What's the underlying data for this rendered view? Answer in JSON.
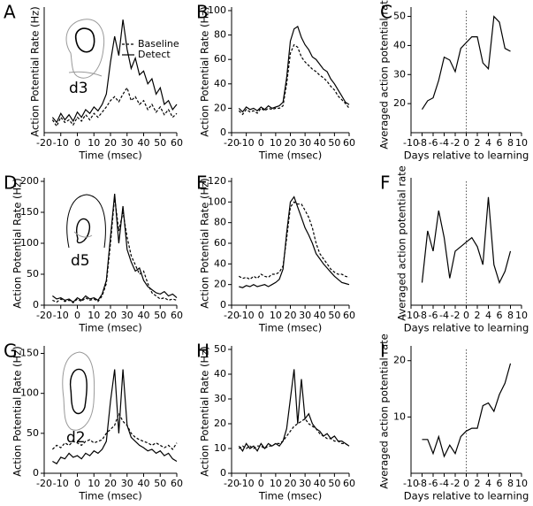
{
  "chart_data": [
    {
      "type": "line",
      "panel_label": "A",
      "xlabel": "Time (msec)",
      "ylabel": "Action Potential Rate (Hz)",
      "annotation": "d3",
      "legend": "upper right",
      "x": [
        -15,
        -12.5,
        -10,
        -7.5,
        -5,
        -2.5,
        0,
        2.5,
        5,
        7.5,
        10,
        12.5,
        15,
        17.5,
        20,
        22.5,
        25,
        27.5,
        30,
        32.5,
        35,
        37.5,
        40,
        42.5,
        45,
        47.5,
        50,
        52.5,
        55,
        57.5,
        60
      ],
      "series": [
        {
          "name": "Baseline",
          "color": "#000000",
          "style": "dashed",
          "values": [
            10,
            5,
            12,
            8,
            10,
            6,
            12,
            9,
            14,
            10,
            15,
            12,
            16,
            20,
            25,
            28,
            24,
            30,
            35,
            25,
            28,
            22,
            25,
            18,
            22,
            16,
            20,
            14,
            18,
            12,
            15
          ]
        },
        {
          "name": "Detect",
          "color": "#000000",
          "style": "solid",
          "values": [
            12,
            8,
            15,
            10,
            14,
            9,
            16,
            12,
            18,
            15,
            20,
            17,
            22,
            30,
            55,
            75,
            60,
            88,
            65,
            50,
            58,
            45,
            48,
            38,
            42,
            30,
            35,
            22,
            25,
            18,
            22
          ]
        }
      ],
      "xlim": [
        -20,
        60
      ],
      "ylim": [
        0,
        95
      ],
      "xticks": [
        -20,
        -10,
        0,
        10,
        20,
        30,
        40,
        50,
        60
      ]
    },
    {
      "type": "line",
      "panel_label": "B",
      "xlabel": "Time (msec)",
      "ylabel": "Action Potential Rate (Hz)",
      "x": [
        -15,
        -12.5,
        -10,
        -7.5,
        -5,
        -2.5,
        0,
        2.5,
        5,
        7.5,
        10,
        12.5,
        15,
        17.5,
        20,
        22.5,
        25,
        27.5,
        30,
        32.5,
        35,
        37.5,
        40,
        42.5,
        45,
        47.5,
        50,
        52.5,
        55,
        57.5,
        60
      ],
      "series": [
        {
          "color": "#000000",
          "style": "dashed",
          "values": [
            18,
            15,
            19,
            17,
            18,
            16,
            20,
            18,
            20,
            19,
            20,
            20,
            22,
            40,
            65,
            72,
            70,
            62,
            58,
            55,
            52,
            50,
            47,
            45,
            42,
            38,
            35,
            30,
            27,
            24,
            20
          ]
        },
        {
          "color": "#000000",
          "style": "solid",
          "values": [
            20,
            17,
            21,
            19,
            20,
            18,
            21,
            19,
            22,
            20,
            21,
            22,
            25,
            45,
            75,
            85,
            87,
            78,
            72,
            68,
            62,
            60,
            56,
            52,
            50,
            44,
            40,
            35,
            30,
            25,
            23
          ]
        }
      ],
      "xlim": [
        -20,
        60
      ],
      "ylim": [
        0,
        100
      ],
      "xticks": [
        -20,
        -10,
        0,
        10,
        20,
        30,
        40,
        50,
        60
      ],
      "yticks": [
        0,
        20,
        40,
        60,
        80,
        100
      ]
    },
    {
      "type": "line",
      "panel_label": "C",
      "xlabel": "Days relative to learning",
      "ylabel": "Averaged action potential rate",
      "vline": 0,
      "x": [
        -8,
        -7,
        -6,
        -5,
        -4,
        -3,
        -2,
        -1,
        0,
        1,
        2,
        3,
        4,
        5,
        6,
        7,
        8
      ],
      "series": [
        {
          "color": "#000000",
          "style": "solid",
          "values": [
            18,
            21,
            22,
            28,
            36,
            35,
            31,
            39,
            41,
            43,
            43,
            34,
            32,
            50,
            48,
            39,
            38
          ]
        }
      ],
      "xlim": [
        -10,
        10
      ],
      "ylim": [
        10,
        52
      ],
      "xticks": [
        -10,
        -8,
        -6,
        -4,
        -2,
        0,
        2,
        4,
        6,
        8,
        10
      ],
      "yticks": [
        20,
        30,
        40,
        50
      ]
    },
    {
      "type": "line",
      "panel_label": "D",
      "xlabel": "Time (msec)",
      "ylabel": "Action Potential Rate (Hz)",
      "annotation": "d5",
      "x": [
        -15,
        -12.5,
        -10,
        -7.5,
        -5,
        -2.5,
        0,
        2.5,
        5,
        7.5,
        10,
        12.5,
        15,
        17.5,
        20,
        22.5,
        25,
        27.5,
        30,
        32.5,
        35,
        37.5,
        40,
        42.5,
        45,
        47.5,
        50,
        52.5,
        55,
        57.5,
        60
      ],
      "series": [
        {
          "color": "#000000",
          "style": "dashed",
          "values": [
            8,
            5,
            10,
            6,
            8,
            4,
            10,
            6,
            12,
            8,
            10,
            6,
            15,
            35,
            100,
            175,
            120,
            150,
            110,
            80,
            65,
            50,
            55,
            35,
            20,
            15,
            10,
            12,
            8,
            10,
            8
          ]
        },
        {
          "color": "#000000",
          "style": "solid",
          "values": [
            15,
            10,
            12,
            8,
            10,
            5,
            12,
            8,
            15,
            10,
            12,
            8,
            18,
            40,
            110,
            180,
            100,
            160,
            90,
            70,
            55,
            60,
            40,
            30,
            25,
            20,
            18,
            22,
            15,
            18,
            12
          ]
        }
      ],
      "xlim": [
        -20,
        60
      ],
      "ylim": [
        0,
        200
      ],
      "xticks": [
        -20,
        -10,
        0,
        10,
        20,
        30,
        40,
        50,
        60
      ],
      "yticks": [
        0,
        50,
        100,
        150,
        200
      ]
    },
    {
      "type": "line",
      "panel_label": "E",
      "xlabel": "Time (msec)",
      "ylabel": "Action Potential Rate (Hz)",
      "x": [
        -15,
        -12.5,
        -10,
        -7.5,
        -5,
        -2.5,
        0,
        2.5,
        5,
        7.5,
        10,
        12.5,
        15,
        17.5,
        20,
        22.5,
        25,
        27.5,
        30,
        32.5,
        35,
        37.5,
        40,
        42.5,
        45,
        47.5,
        50,
        52.5,
        55,
        57.5,
        60
      ],
      "series": [
        {
          "color": "#000000",
          "style": "dashed",
          "values": [
            28,
            26,
            27,
            25,
            28,
            26,
            30,
            28,
            27,
            30,
            30,
            32,
            38,
            65,
            95,
            100,
            98,
            98,
            92,
            85,
            75,
            60,
            50,
            45,
            40,
            35,
            32,
            30,
            30,
            28,
            27
          ]
        },
        {
          "color": "#000000",
          "style": "solid",
          "values": [
            18,
            17,
            19,
            18,
            20,
            18,
            19,
            20,
            18,
            20,
            22,
            25,
            35,
            70,
            100,
            105,
            95,
            85,
            75,
            68,
            60,
            50,
            45,
            40,
            36,
            32,
            28,
            25,
            22,
            21,
            20
          ]
        }
      ],
      "xlim": [
        -20,
        60
      ],
      "ylim": [
        0,
        120
      ],
      "xticks": [
        -20,
        -10,
        0,
        10,
        20,
        30,
        40,
        50,
        60
      ],
      "yticks": [
        0,
        20,
        40,
        60,
        80,
        100,
        120
      ]
    },
    {
      "type": "line",
      "panel_label": "F",
      "xlabel": "Days relative to learning",
      "ylabel": "Averaged action potential rate",
      "vline": 0,
      "x": [
        -8,
        -7,
        -6,
        -5,
        -4,
        -3,
        -2,
        -1,
        0,
        1,
        2,
        3,
        4,
        5,
        6,
        7,
        8
      ],
      "series": [
        {
          "color": "#000000",
          "style": "solid",
          "values": [
            30,
            53,
            44,
            62,
            50,
            32,
            44,
            46,
            48,
            50,
            46,
            38,
            68,
            38,
            30,
            35,
            44
          ]
        }
      ],
      "xlim": [
        -10,
        10
      ],
      "ylim": [
        20,
        75
      ],
      "xticks": [
        -10,
        -8,
        -6,
        -4,
        -2,
        0,
        2,
        4,
        6,
        8,
        10
      ]
    },
    {
      "type": "line",
      "panel_label": "G",
      "xlabel": "Time (msec)",
      "ylabel": "Action Potential Rate (Hz)",
      "annotation": "d2",
      "x": [
        -15,
        -12.5,
        -10,
        -7.5,
        -5,
        -2.5,
        0,
        2.5,
        5,
        7.5,
        10,
        12.5,
        15,
        17.5,
        20,
        22.5,
        25,
        27.5,
        30,
        32.5,
        35,
        37.5,
        40,
        42.5,
        45,
        47.5,
        50,
        52.5,
        55,
        57.5,
        60
      ],
      "series": [
        {
          "color": "#000000",
          "style": "dashed",
          "values": [
            30,
            35,
            32,
            38,
            35,
            40,
            38,
            35,
            40,
            42,
            38,
            40,
            42,
            50,
            55,
            60,
            75,
            65,
            60,
            50,
            45,
            42,
            40,
            38,
            35,
            38,
            35,
            32,
            35,
            30,
            38
          ]
        },
        {
          "color": "#000000",
          "style": "solid",
          "values": [
            15,
            12,
            20,
            18,
            25,
            20,
            22,
            18,
            25,
            22,
            28,
            25,
            30,
            40,
            90,
            130,
            50,
            130,
            60,
            45,
            40,
            35,
            32,
            28,
            30,
            25,
            28,
            22,
            25,
            18,
            15
          ]
        }
      ],
      "xlim": [
        -20,
        60
      ],
      "ylim": [
        0,
        155
      ],
      "xticks": [
        -20,
        -10,
        0,
        10,
        20,
        30,
        40,
        50,
        60
      ],
      "yticks": [
        0,
        50,
        100,
        150
      ]
    },
    {
      "type": "line",
      "panel_label": "H",
      "xlabel": "Time (msec)",
      "ylabel": "Action Potential Rate (Hz)",
      "x": [
        -15,
        -12.5,
        -10,
        -7.5,
        -5,
        -2.5,
        0,
        2.5,
        5,
        7.5,
        10,
        12.5,
        15,
        17.5,
        20,
        22.5,
        25,
        27.5,
        30,
        32.5,
        35,
        37.5,
        40,
        42.5,
        45,
        47.5,
        50,
        52.5,
        55,
        57.5,
        60
      ],
      "series": [
        {
          "color": "#000000",
          "style": "dashed",
          "values": [
            10,
            11,
            10,
            11,
            10,
            11,
            11,
            10,
            11,
            11,
            12,
            12,
            13,
            15,
            17,
            19,
            20,
            21,
            22,
            20,
            19,
            18,
            16,
            15,
            14,
            14,
            13,
            13,
            12,
            12,
            11
          ]
        },
        {
          "color": "#000000",
          "style": "solid",
          "values": [
            11,
            9,
            12,
            10,
            11,
            9,
            12,
            10,
            12,
            11,
            12,
            11,
            13,
            18,
            30,
            42,
            20,
            38,
            22,
            24,
            20,
            18,
            17,
            15,
            16,
            14,
            15,
            13,
            13,
            12,
            11
          ]
        }
      ],
      "xlim": [
        -20,
        60
      ],
      "ylim": [
        0,
        50
      ],
      "xticks": [
        -20,
        -10,
        0,
        10,
        20,
        30,
        40,
        50,
        60
      ],
      "yticks": [
        0,
        10,
        20,
        30,
        40,
        50
      ]
    },
    {
      "type": "line",
      "panel_label": "I",
      "xlabel": "Days relative to learning",
      "ylabel": "Averaged action potential rate",
      "vline": 0,
      "x": [
        -8,
        -7,
        -6,
        -5,
        -4,
        -3,
        -2,
        -1,
        0,
        1,
        2,
        3,
        4,
        5,
        6,
        7,
        8
      ],
      "series": [
        {
          "color": "#000000",
          "style": "solid",
          "values": [
            6,
            6,
            3.5,
            6.5,
            3,
            5,
            3.5,
            6.5,
            7.5,
            8,
            8,
            12,
            12.5,
            11,
            14,
            16,
            19.5
          ]
        }
      ],
      "xlim": [
        -10,
        10
      ],
      "ylim": [
        0,
        22
      ],
      "xticks": [
        -10,
        -8,
        -6,
        -4,
        -2,
        0,
        2,
        4,
        6,
        8,
        10
      ],
      "yticks": [
        10,
        20
      ]
    }
  ]
}
